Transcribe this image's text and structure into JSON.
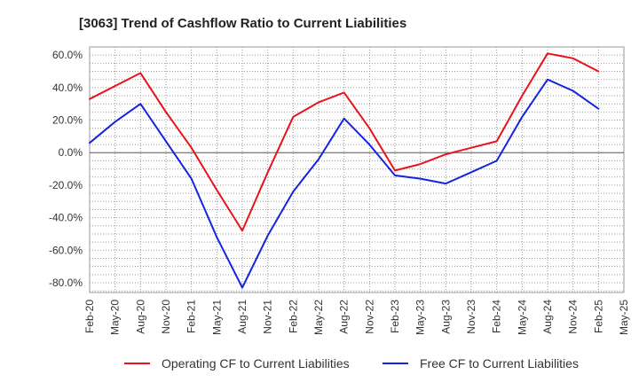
{
  "chart_data": {
    "type": "line",
    "title": "[3063]  Trend of Cashflow Ratio to Current Liabilities",
    "xlabel": "",
    "ylabel": "",
    "x": [
      "Feb-20",
      "May-20",
      "Aug-20",
      "Nov-20",
      "Feb-21",
      "May-21",
      "Aug-21",
      "Nov-21",
      "Feb-22",
      "May-22",
      "Aug-22",
      "Nov-22",
      "Feb-23",
      "May-23",
      "Aug-23",
      "Nov-23",
      "Feb-24",
      "May-24",
      "Aug-24",
      "Nov-24",
      "Feb-25",
      "May-25"
    ],
    "ylim": [
      -86,
      65
    ],
    "yticks": [
      60,
      40,
      20,
      0,
      -20,
      -40,
      -60,
      -80
    ],
    "ytick_labels": [
      "60.0%",
      "40.0%",
      "20.0%",
      "0.0%",
      "-20.0%",
      "-40.0%",
      "-60.0%",
      "-80.0%"
    ],
    "grid": true,
    "legend_position": "bottom",
    "series": [
      {
        "name": "Operating CF to Current Liabilities",
        "color": "#e8141c",
        "values": [
          33,
          41,
          49,
          25,
          3,
          -23,
          -48,
          -12,
          22,
          31,
          37,
          15,
          -11,
          -7,
          -1,
          3,
          7,
          35,
          61,
          58,
          50,
          null
        ]
      },
      {
        "name": "Free CF to Current Liabilities",
        "color": "#1424e0",
        "values": [
          6,
          19,
          30,
          7,
          -16,
          -52,
          -83,
          -51,
          -24,
          -4,
          21,
          5,
          -14,
          -16,
          -19,
          -12,
          -5,
          22,
          45,
          38,
          27,
          null
        ]
      }
    ]
  }
}
